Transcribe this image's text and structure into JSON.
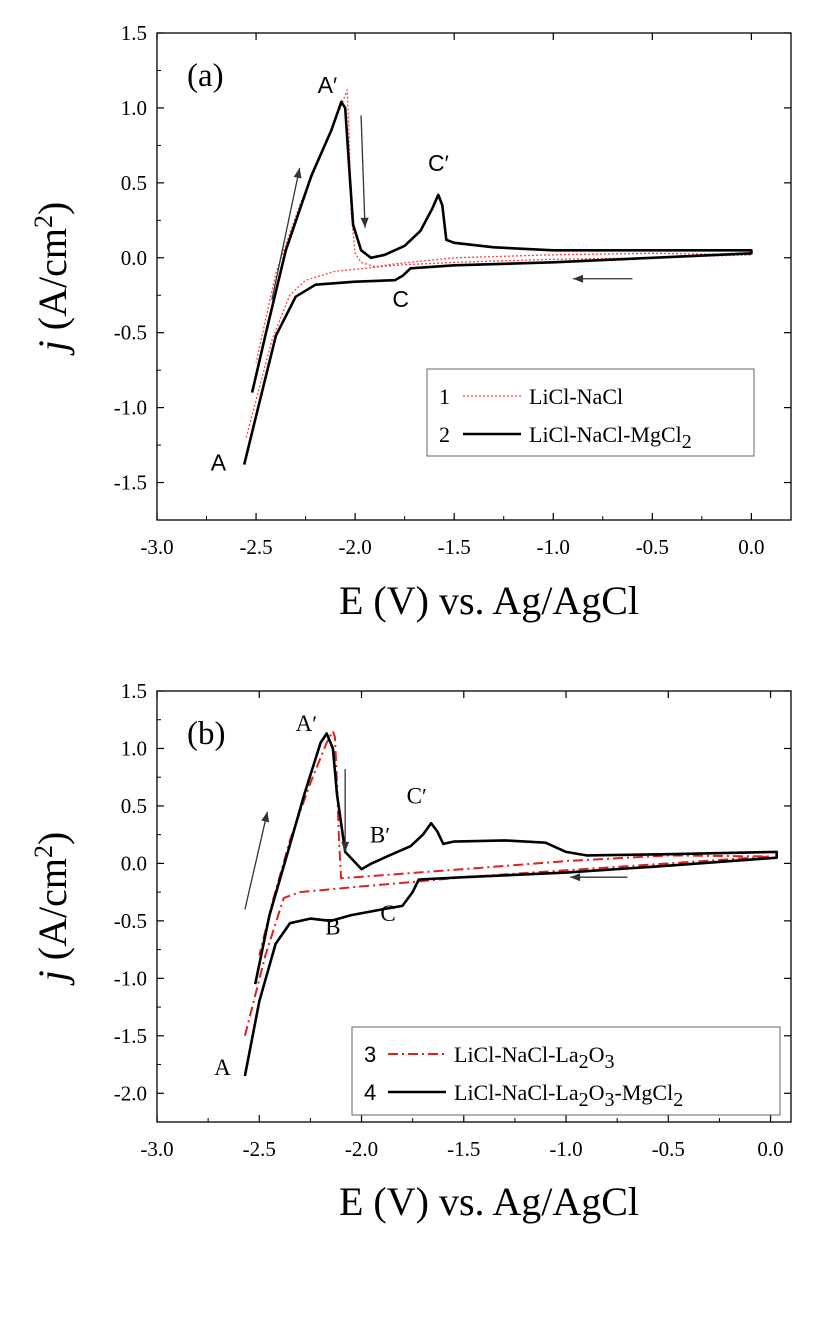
{
  "chart_data": [
    {
      "type": "line",
      "panel_label": "(a)",
      "xlabel": "E (V) vs. Ag/AgCl",
      "ylabel_prefix": "j",
      "ylabel_unit": "(A/cm",
      "ylabel_sup": "2",
      "ylabel_close": ")",
      "xlim": [
        -3.0,
        0.2
      ],
      "ylim": [
        -1.75,
        1.5
      ],
      "xticks": [
        -3.0,
        -2.5,
        -2.0,
        -1.5,
        -1.0,
        -0.5,
        0.0
      ],
      "xtick_labels": [
        "-3.0",
        "-2.5",
        "-2.0",
        "-1.5",
        "-1.0",
        "-0.5",
        "0.0"
      ],
      "yticks": [
        -1.5,
        -1.0,
        -0.5,
        0.0,
        0.5,
        1.0,
        1.5
      ],
      "ytick_labels": [
        "-1.5",
        "-1.0",
        "-0.5",
        "0.0",
        "0.5",
        "1.0",
        "1.5"
      ],
      "legend": {
        "position": "lower-right",
        "entries": [
          {
            "num": "1",
            "text": "LiCl-NaCl",
            "sub": "",
            "tail": ""
          },
          {
            "num": "2",
            "text": "LiCl-NaCl-MgCl",
            "sub": "2",
            "tail": ""
          }
        ]
      },
      "series": [
        {
          "name": "LiCl-NaCl",
          "color": "#ff4444",
          "style": "dotted",
          "points": [
            [
              -2.55,
              -1.2
            ],
            [
              -2.42,
              -0.55
            ],
            [
              -2.33,
              -0.25
            ],
            [
              -2.25,
              -0.15
            ],
            [
              -2.1,
              -0.09
            ],
            [
              -1.8,
              -0.05
            ],
            [
              -1.5,
              -0.03
            ],
            [
              -1.0,
              -0.01
            ],
            [
              -0.5,
              0.0
            ],
            [
              0.0,
              0.02
            ],
            [
              -0.5,
              0.03
            ],
            [
              -1.0,
              0.02
            ],
            [
              -1.5,
              0.0
            ],
            [
              -1.8,
              -0.04
            ],
            [
              -1.9,
              -0.06
            ],
            [
              -1.97,
              -0.03
            ],
            [
              -2.0,
              0.03
            ],
            [
              -2.02,
              0.3
            ],
            [
              -2.03,
              0.8
            ],
            [
              -2.04,
              1.12
            ],
            [
              -2.06,
              1.05
            ],
            [
              -2.15,
              0.75
            ],
            [
              -2.28,
              0.35
            ],
            [
              -2.4,
              -0.1
            ],
            [
              -2.5,
              -0.7
            ]
          ]
        },
        {
          "name": "LiCl-NaCl-MgCl2",
          "color": "#000000",
          "style": "solid",
          "points": [
            [
              -2.56,
              -1.38
            ],
            [
              -2.48,
              -0.95
            ],
            [
              -2.4,
              -0.52
            ],
            [
              -2.3,
              -0.26
            ],
            [
              -2.2,
              -0.18
            ],
            [
              -2.0,
              -0.16
            ],
            [
              -1.8,
              -0.15
            ],
            [
              -1.76,
              -0.12
            ],
            [
              -1.72,
              -0.07
            ],
            [
              -1.5,
              -0.05
            ],
            [
              -1.0,
              -0.03
            ],
            [
              -0.5,
              0.0
            ],
            [
              0.0,
              0.03
            ],
            [
              0.0,
              0.05
            ],
            [
              -0.5,
              0.05
            ],
            [
              -1.0,
              0.05
            ],
            [
              -1.3,
              0.07
            ],
            [
              -1.5,
              0.1
            ],
            [
              -1.54,
              0.12
            ],
            [
              -1.56,
              0.35
            ],
            [
              -1.58,
              0.42
            ],
            [
              -1.61,
              0.33
            ],
            [
              -1.67,
              0.18
            ],
            [
              -1.75,
              0.08
            ],
            [
              -1.85,
              0.02
            ],
            [
              -1.92,
              0.0
            ],
            [
              -1.97,
              0.05
            ],
            [
              -2.01,
              0.22
            ],
            [
              -2.03,
              0.6
            ],
            [
              -2.05,
              1.0
            ],
            [
              -2.07,
              1.04
            ],
            [
              -2.12,
              0.85
            ],
            [
              -2.22,
              0.55
            ],
            [
              -2.35,
              0.05
            ],
            [
              -2.45,
              -0.5
            ],
            [
              -2.52,
              -0.9
            ]
          ]
        }
      ],
      "annotations": [
        {
          "text": "A",
          "prime": false,
          "x": -2.69,
          "y": -1.42
        },
        {
          "text": "A",
          "prime": true,
          "x": -2.14,
          "y": 1.1
        },
        {
          "text": "C",
          "prime": true,
          "x": -1.58,
          "y": 0.58
        },
        {
          "text": "C",
          "prime": false,
          "x": -1.77,
          "y": -0.33
        }
      ],
      "arrows": [
        {
          "from": [
            -2.42,
            -0.28
          ],
          "to": [
            -2.28,
            0.6
          ]
        },
        {
          "from": [
            -1.97,
            0.95
          ],
          "to": [
            -1.95,
            0.2
          ]
        },
        {
          "from": [
            -0.6,
            -0.14
          ],
          "to": [
            -0.9,
            -0.14
          ]
        }
      ]
    },
    {
      "type": "line",
      "panel_label": "(b)",
      "xlabel": "E (V) vs. Ag/AgCl",
      "ylabel_prefix": "j",
      "ylabel_unit": "(A/cm",
      "ylabel_sup": "2",
      "ylabel_close": ")",
      "xlim": [
        -3.0,
        0.1
      ],
      "ylim": [
        -2.25,
        1.5
      ],
      "xticks": [
        -3.0,
        -2.5,
        -2.0,
        -1.5,
        -1.0,
        -0.5,
        0.0
      ],
      "xtick_labels": [
        "-3.0",
        "-2.5",
        "-2.0",
        "-1.5",
        "-1.0",
        "-0.5",
        "0.0"
      ],
      "yticks": [
        -2.0,
        -1.5,
        -1.0,
        -0.5,
        0.0,
        0.5,
        1.0,
        1.5
      ],
      "ytick_labels": [
        "-2.0",
        "-1.5",
        "-1.0",
        "-0.5",
        "0.0",
        "0.5",
        "1.0",
        "1.5"
      ],
      "legend": {
        "position": "lower-right",
        "entries": [
          {
            "num": "3",
            "text": "LiCl-NaCl-La",
            "sub": "2",
            "tail": "O",
            "sub2": "3",
            "tail2": ""
          },
          {
            "num": "4",
            "text": "LiCl-NaCl-La",
            "sub": "2",
            "tail": "O",
            "sub2": "3",
            "tail2": "-MgCl",
            "sub3": "2"
          }
        ]
      },
      "series": [
        {
          "name": "LiCl-NaCl-La2O3",
          "color": "#dd2222",
          "style": "dashdot",
          "points": [
            [
              -2.57,
              -1.5
            ],
            [
              -2.47,
              -0.8
            ],
            [
              -2.38,
              -0.3
            ],
            [
              -2.3,
              -0.25
            ],
            [
              -2.0,
              -0.2
            ],
            [
              -1.8,
              -0.17
            ],
            [
              -1.5,
              -0.12
            ],
            [
              -1.0,
              -0.06
            ],
            [
              -0.5,
              0.0
            ],
            [
              0.0,
              0.06
            ],
            [
              -0.5,
              0.07
            ],
            [
              -1.0,
              0.02
            ],
            [
              -1.5,
              -0.05
            ],
            [
              -1.8,
              -0.09
            ],
            [
              -2.1,
              -0.13
            ],
            [
              -2.11,
              0.2
            ],
            [
              -2.12,
              0.7
            ],
            [
              -2.13,
              1.1
            ],
            [
              -2.14,
              1.15
            ],
            [
              -2.17,
              1.05
            ],
            [
              -2.25,
              0.7
            ],
            [
              -2.35,
              0.2
            ],
            [
              -2.43,
              -0.3
            ],
            [
              -2.5,
              -0.8
            ]
          ]
        },
        {
          "name": "LiCl-NaCl-La2O3-MgCl2",
          "color": "#000000",
          "style": "solid",
          "points": [
            [
              -2.57,
              -1.85
            ],
            [
              -2.5,
              -1.2
            ],
            [
              -2.42,
              -0.7
            ],
            [
              -2.35,
              -0.52
            ],
            [
              -2.25,
              -0.48
            ],
            [
              -2.15,
              -0.5
            ],
            [
              -2.05,
              -0.45
            ],
            [
              -1.9,
              -0.4
            ],
            [
              -1.8,
              -0.37
            ],
            [
              -1.75,
              -0.25
            ],
            [
              -1.72,
              -0.14
            ],
            [
              -1.5,
              -0.12
            ],
            [
              -1.0,
              -0.08
            ],
            [
              -0.5,
              -0.02
            ],
            [
              0.03,
              0.05
            ],
            [
              0.03,
              0.1
            ],
            [
              -0.5,
              0.08
            ],
            [
              -0.9,
              0.07
            ],
            [
              -1.0,
              0.1
            ],
            [
              -1.1,
              0.18
            ],
            [
              -1.3,
              0.2
            ],
            [
              -1.55,
              0.19
            ],
            [
              -1.6,
              0.17
            ],
            [
              -1.63,
              0.28
            ],
            [
              -1.66,
              0.35
            ],
            [
              -1.7,
              0.25
            ],
            [
              -1.76,
              0.15
            ],
            [
              -1.85,
              0.08
            ],
            [
              -1.95,
              0.0
            ],
            [
              -2.0,
              -0.05
            ],
            [
              -2.08,
              0.1
            ],
            [
              -2.12,
              0.6
            ],
            [
              -2.14,
              1.0
            ],
            [
              -2.17,
              1.13
            ],
            [
              -2.2,
              1.05
            ],
            [
              -2.28,
              0.6
            ],
            [
              -2.36,
              0.1
            ],
            [
              -2.45,
              -0.45
            ],
            [
              -2.52,
              -1.05
            ]
          ]
        }
      ],
      "annotations": [
        {
          "text": "A",
          "prime": false,
          "x": -2.68,
          "y": -1.84
        },
        {
          "text": "A",
          "prime": true,
          "x": -2.27,
          "y": 1.15
        },
        {
          "text": "B",
          "prime": false,
          "x": -2.14,
          "y": -0.62
        },
        {
          "text": "C",
          "prime": false,
          "x": -1.87,
          "y": -0.5
        },
        {
          "text": "B",
          "prime": true,
          "x": -1.91,
          "y": 0.18
        },
        {
          "text": "C",
          "prime": true,
          "x": -1.73,
          "y": 0.52
        }
      ],
      "arrows": [
        {
          "from": [
            -2.57,
            -0.4
          ],
          "to": [
            -2.46,
            0.45
          ]
        },
        {
          "from": [
            -2.08,
            0.82
          ],
          "to": [
            -2.08,
            0.1
          ]
        },
        {
          "from": [
            -0.7,
            -0.12
          ],
          "to": [
            -0.98,
            -0.12
          ]
        }
      ]
    }
  ]
}
